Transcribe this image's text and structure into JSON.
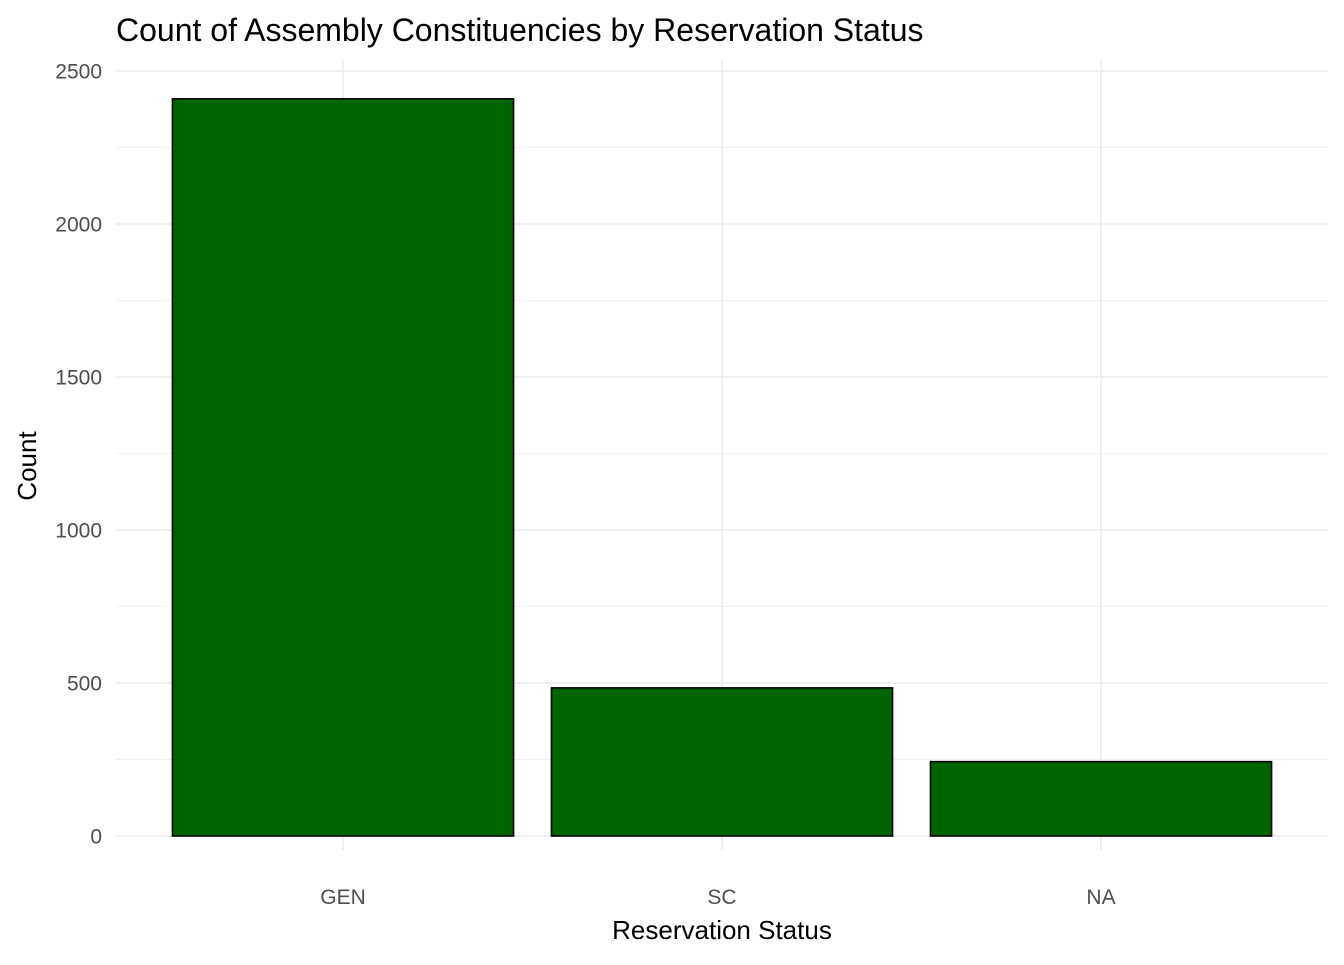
{
  "chart_data": {
    "type": "bar",
    "title": "Count of Assembly Constituencies by Reservation Status",
    "xlabel": "Reservation Status",
    "ylabel": "Count",
    "categories": [
      "GEN",
      "SC",
      "NA"
    ],
    "values": [
      2409,
      484,
      243
    ],
    "ylim": [
      0,
      2500
    ],
    "yticks": [
      0,
      500,
      1000,
      1500,
      2000,
      2500
    ],
    "ytick_labels": [
      "0",
      "500",
      "1000",
      "1500",
      "2000",
      "2500"
    ],
    "grid": true,
    "legend": "none",
    "bar_color": "#006400",
    "bar_outline": "#000000"
  }
}
